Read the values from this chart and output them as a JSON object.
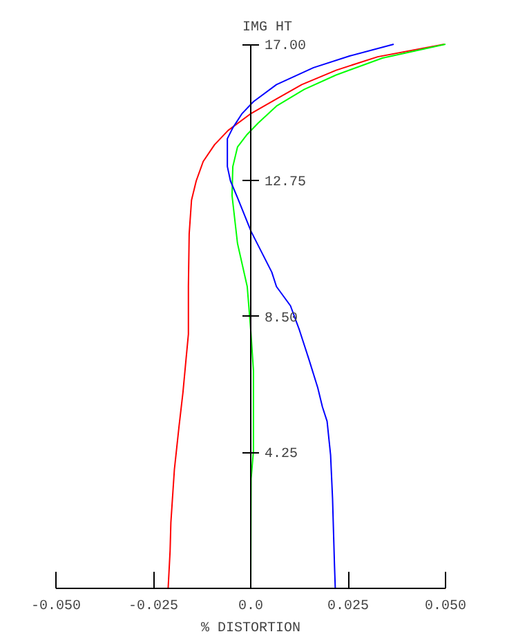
{
  "chart_data": {
    "type": "line",
    "ylabel": "IMG HT",
    "xlabel": "% DISTORTION",
    "xlim": [
      -0.05,
      0.05
    ],
    "ylim": [
      0,
      17
    ],
    "xticks": [
      {
        "value": -0.05,
        "label": "-0.050"
      },
      {
        "value": -0.025,
        "label": "-0.025"
      },
      {
        "value": 0,
        "label": "0.0"
      },
      {
        "value": 0.025,
        "label": "0.025"
      },
      {
        "value": 0.05,
        "label": "0.050"
      }
    ],
    "yticks": [
      {
        "value": 4.25,
        "label": "4.25"
      },
      {
        "value": 8.5,
        "label": "8.50"
      },
      {
        "value": 12.75,
        "label": "12.75"
      },
      {
        "value": 17,
        "label": "17.00"
      }
    ],
    "grid": false,
    "series": [
      {
        "color": "#ff0000",
        "x": [
          -0.0212,
          -0.0207,
          -0.0205,
          -0.0196,
          -0.0184,
          -0.0174,
          -0.0166,
          -0.016,
          -0.016,
          -0.0158,
          -0.0152,
          -0.014,
          -0.0122,
          -0.0093,
          -0.0058,
          0.0001,
          0.0066,
          0.0131,
          0.0219,
          0.0326,
          0.0497
        ],
        "values": [
          0,
          1.17,
          2.06,
          3.71,
          5.07,
          6.12,
          7.17,
          7.94,
          9.43,
          11.08,
          12.13,
          12.73,
          13.34,
          13.86,
          14.31,
          14.84,
          15.29,
          15.74,
          16.19,
          16.61,
          17.0
        ]
      },
      {
        "color": "#00ff00",
        "x": [
          0,
          0.0001,
          0.0007,
          0.0007,
          0.0,
          -0.0009,
          -0.0034,
          -0.0048,
          -0.0046,
          -0.0034,
          -0.0011,
          0.0019,
          0.0066,
          0.0137,
          0.0219,
          0.0338,
          0.05
        ],
        "values": [
          0,
          3.43,
          4.3,
          6.8,
          8.07,
          9.43,
          10.78,
          12.28,
          13.18,
          13.79,
          14.16,
          14.54,
          15.07,
          15.59,
          16.04,
          16.57,
          17.0
        ]
      },
      {
        "color": "#0000ff",
        "x": [
          0.0217,
          0.0215,
          0.021,
          0.0205,
          0.0196,
          0.0184,
          0.0172,
          0.0149,
          0.0125,
          0.0102,
          0.0066,
          0.0054,
          0.0001,
          -0.0034,
          -0.0052,
          -0.006,
          -0.006,
          -0.0046,
          -0.0022,
          0.0007,
          0.0066,
          0.0161,
          0.0255,
          0.0367
        ],
        "values": [
          0,
          0.71,
          2.81,
          4.16,
          5.22,
          5.67,
          6.27,
          7.17,
          8.07,
          8.83,
          9.43,
          9.88,
          11.15,
          12.21,
          12.73,
          13.18,
          14.05,
          14.39,
          14.84,
          15.21,
          15.74,
          16.27,
          16.64,
          17.0
        ]
      }
    ]
  }
}
